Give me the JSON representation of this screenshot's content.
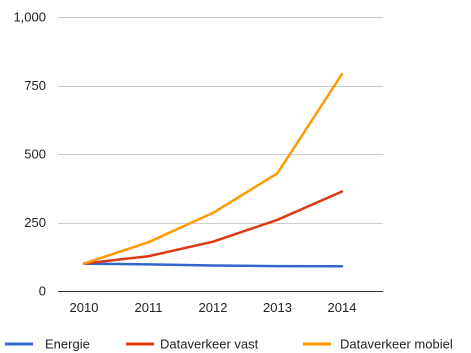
{
  "chart_data": {
    "type": "line",
    "title": "",
    "xlabel": "",
    "ylabel": "",
    "categories": [
      "2010",
      "2011",
      "2012",
      "2013",
      "2014"
    ],
    "y_ticks": [
      0,
      250,
      500,
      750,
      1000
    ],
    "y_tick_labels": [
      "0",
      "250",
      "500",
      "750",
      "1,000"
    ],
    "ylim": [
      0,
      1000
    ],
    "grid": true,
    "legend_position": "bottom",
    "series": [
      {
        "name": "Energie",
        "color": "#3366cc",
        "values": [
          100,
          97,
          93,
          91,
          90
        ]
      },
      {
        "name": "Dataverkeer vast",
        "color": "#dc3912",
        "values": [
          100,
          127,
          180,
          260,
          363
        ]
      },
      {
        "name": "Dataverkeer mobiel",
        "color": "#ff9900",
        "values": [
          100,
          178,
          285,
          430,
          792
        ]
      }
    ]
  }
}
